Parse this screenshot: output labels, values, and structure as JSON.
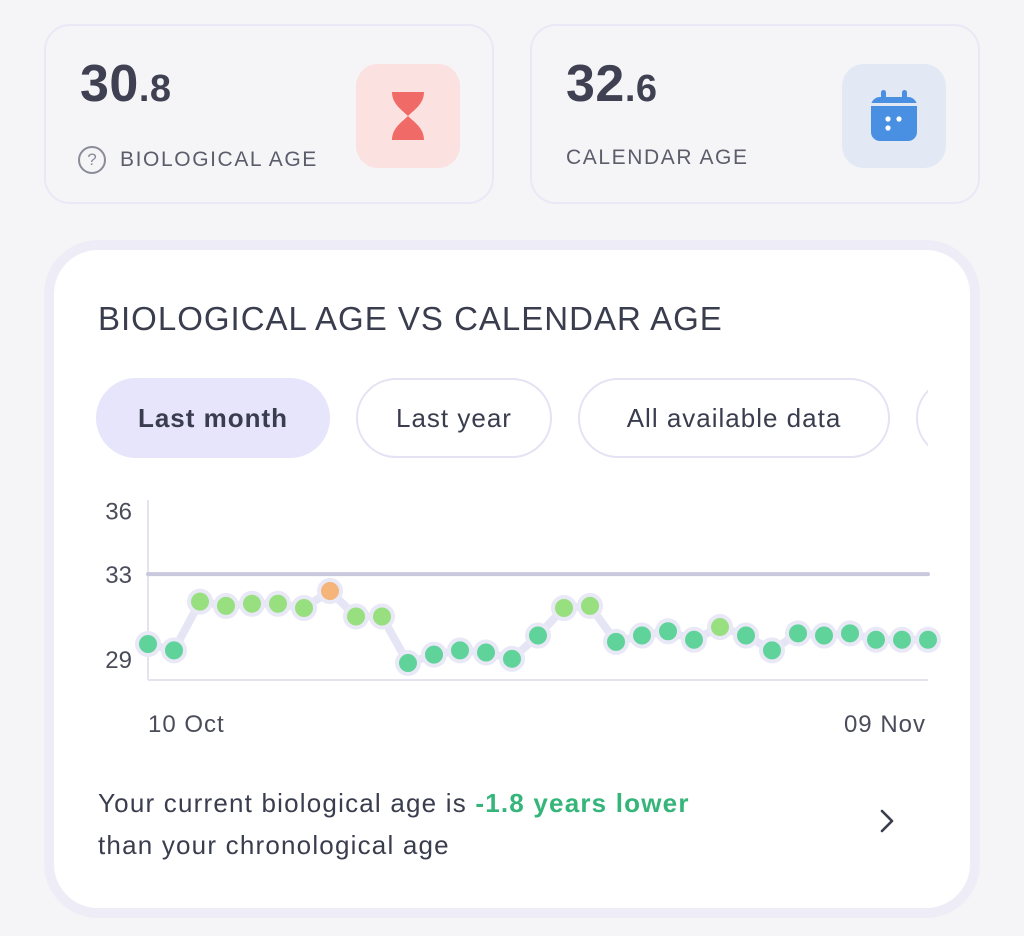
{
  "biological": {
    "value_int": "30",
    "value_dec": ".8",
    "label": "BIOLOGICAL AGE",
    "icon": "hourglass-icon",
    "help_icon": "?",
    "tile_color": "#fbe1df",
    "icon_color": "#f06a67"
  },
  "calendar": {
    "value_int": "32",
    "value_dec": ".6",
    "label": "CALENDAR AGE",
    "icon": "calendar-icon",
    "tile_color": "#e2e9f4",
    "icon_color": "#4a90e2"
  },
  "chart_card": {
    "title": "BIOLOGICAL AGE VS CALENDAR AGE",
    "tabs": [
      {
        "label": "Last month",
        "active": true
      },
      {
        "label": "Last year",
        "active": false
      },
      {
        "label": "All available data",
        "active": false
      },
      {
        "label": "",
        "active": false
      }
    ]
  },
  "chart_data": {
    "type": "line",
    "x_labels": [
      "10 Oct",
      "09 Nov"
    ],
    "yticks": [
      29,
      33,
      36
    ],
    "ylim": [
      28,
      36.5
    ],
    "reference_line": {
      "value": 33
    },
    "series": [
      {
        "values": [
          29.7,
          29.4,
          31.7,
          31.5,
          31.6,
          31.6,
          31.4,
          32.2,
          31.0,
          31.0,
          28.8,
          29.2,
          29.4,
          29.3,
          29.0,
          30.1,
          31.4,
          31.5,
          29.8,
          30.1,
          30.3,
          29.9,
          30.5,
          30.1,
          29.4,
          30.2,
          30.1,
          30.2,
          29.9,
          29.9,
          29.9
        ],
        "colors": [
          "#5fd39a",
          "#5fd39a",
          "#98df80",
          "#98df80",
          "#98df80",
          "#98df80",
          "#98df80",
          "#f5b47a",
          "#98df80",
          "#98df80",
          "#5fd39a",
          "#5fd39a",
          "#5fd39a",
          "#5fd39a",
          "#5fd39a",
          "#5fd39a",
          "#98df80",
          "#98df80",
          "#5fd39a",
          "#5fd39a",
          "#5fd39a",
          "#5fd39a",
          "#98df80",
          "#5fd39a",
          "#5fd39a",
          "#5fd39a",
          "#5fd39a",
          "#5fd39a",
          "#5fd39a",
          "#5fd39a",
          "#5fd39a"
        ]
      }
    ],
    "line_color": "#e6e5f6",
    "reference_color": "#c9c8dc",
    "grid": false
  },
  "summary": {
    "prefix": "Your current biological age is ",
    "highlight": "-1.8 years lower",
    "suffix": "than your chronological age",
    "highlight_color": "#35b57a"
  },
  "chevron_icon": "chevron-right-icon"
}
